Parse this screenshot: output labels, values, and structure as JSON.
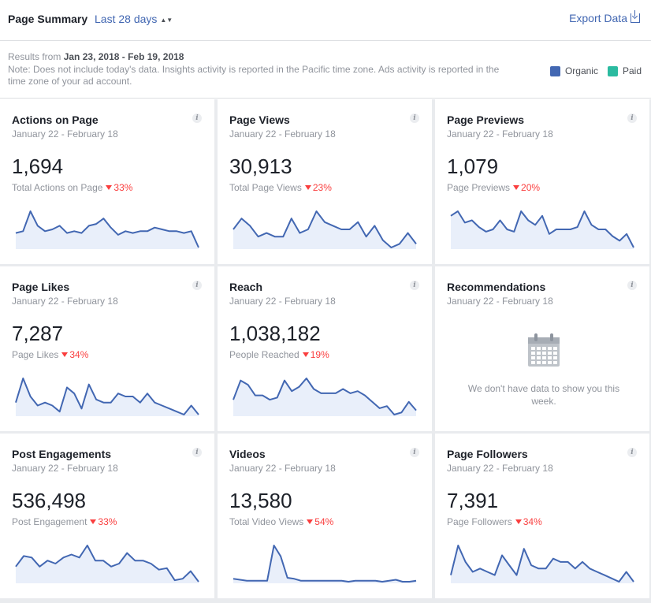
{
  "header": {
    "title": "Page Summary",
    "range": "Last 28 days",
    "export_label": "Export Data"
  },
  "info": {
    "results_prefix": "Results from",
    "results_range": "Jan 23, 2018 - Feb 19, 2018",
    "note": "Note: Does not include today's data. Insights activity is reported in the Pacific time zone. Ads activity is reported in the time zone of your ad account.",
    "legend": [
      {
        "label": "Organic",
        "color": "#4267b2"
      },
      {
        "label": "Paid",
        "color": "#2bbba0"
      }
    ]
  },
  "colors": {
    "line": "#4267b2",
    "fill": "#e9effa",
    "decline": "#fa3e3e"
  },
  "cards": [
    {
      "title": "Actions on Page",
      "dates": "January 22 - February 18",
      "value": "1,694",
      "sub": "Total Actions on Page",
      "change": "33%",
      "series": [
        3,
        4,
        15,
        7,
        4,
        5,
        7,
        3,
        4,
        3,
        7,
        8,
        11,
        6,
        2,
        4,
        3,
        4,
        4,
        6,
        5,
        4,
        4,
        3,
        4,
        -5
      ]
    },
    {
      "title": "Page Views",
      "dates": "January 22 - February 18",
      "value": "30,913",
      "sub": "Total Page Views",
      "change": "23%",
      "series": [
        15,
        18,
        16,
        13,
        14,
        13,
        13,
        18,
        14,
        15,
        20,
        17,
        16,
        15,
        15,
        17,
        13,
        16,
        12,
        10,
        11,
        14,
        11
      ]
    },
    {
      "title": "Page Previews",
      "dates": "January 22 - February 18",
      "value": "1,079",
      "sub": "Page Previews",
      "change": "20%",
      "series": [
        14,
        16,
        11,
        12,
        9,
        7,
        8,
        12,
        8,
        7,
        16,
        12,
        10,
        14,
        6,
        8,
        8,
        8,
        9,
        16,
        10,
        8,
        8,
        5,
        3,
        6,
        0
      ]
    },
    {
      "title": "Page Likes",
      "dates": "January 22 - February 18",
      "value": "7,287",
      "sub": "Page Likes",
      "change": "34%",
      "series": [
        10,
        18,
        12,
        9,
        10,
        9,
        7,
        15,
        13,
        8,
        16,
        11,
        10,
        10,
        13,
        12,
        12,
        10,
        13,
        10,
        9,
        8,
        7,
        6,
        9,
        6
      ]
    },
    {
      "title": "Reach",
      "dates": "January 22 - February 18",
      "value": "1,038,182",
      "sub": "People Reached",
      "change": "19%",
      "series": [
        13,
        22,
        20,
        15,
        15,
        13,
        14,
        22,
        17,
        19,
        23,
        18,
        16,
        16,
        16,
        18,
        16,
        17,
        15,
        12,
        9,
        10,
        6,
        7,
        12,
        8
      ]
    },
    {
      "title": "Recommendations",
      "dates": "January 22 - February 18",
      "empty": "We don't have data to show you this week."
    },
    {
      "title": "Post Engagements",
      "dates": "January 22 - February 18",
      "value": "536,498",
      "sub": "Post Engagement",
      "change": "33%",
      "series": [
        12,
        19,
        18,
        12,
        16,
        14,
        18,
        20,
        18,
        26,
        16,
        16,
        12,
        14,
        21,
        16,
        16,
        14,
        10,
        11,
        3,
        4,
        9,
        2
      ]
    },
    {
      "title": "Videos",
      "dates": "January 22 - February 18",
      "value": "13,580",
      "sub": "Total Video Views",
      "change": "54%",
      "series": [
        3,
        2,
        1,
        1,
        1,
        1,
        37,
        26,
        4,
        3,
        1,
        1,
        1,
        1,
        1,
        1,
        1,
        0,
        1,
        1,
        1,
        1,
        0,
        1,
        2,
        0,
        0,
        1
      ]
    },
    {
      "title": "Page Followers",
      "dates": "January 22 - February 18",
      "value": "7,391",
      "sub": "Page Followers",
      "change": "34%",
      "series": [
        8,
        17,
        12,
        9,
        10,
        9,
        8,
        14,
        11,
        8,
        16,
        11,
        10,
        10,
        13,
        12,
        12,
        10,
        12,
        10,
        9,
        8,
        7,
        6,
        9,
        6
      ]
    }
  ]
}
